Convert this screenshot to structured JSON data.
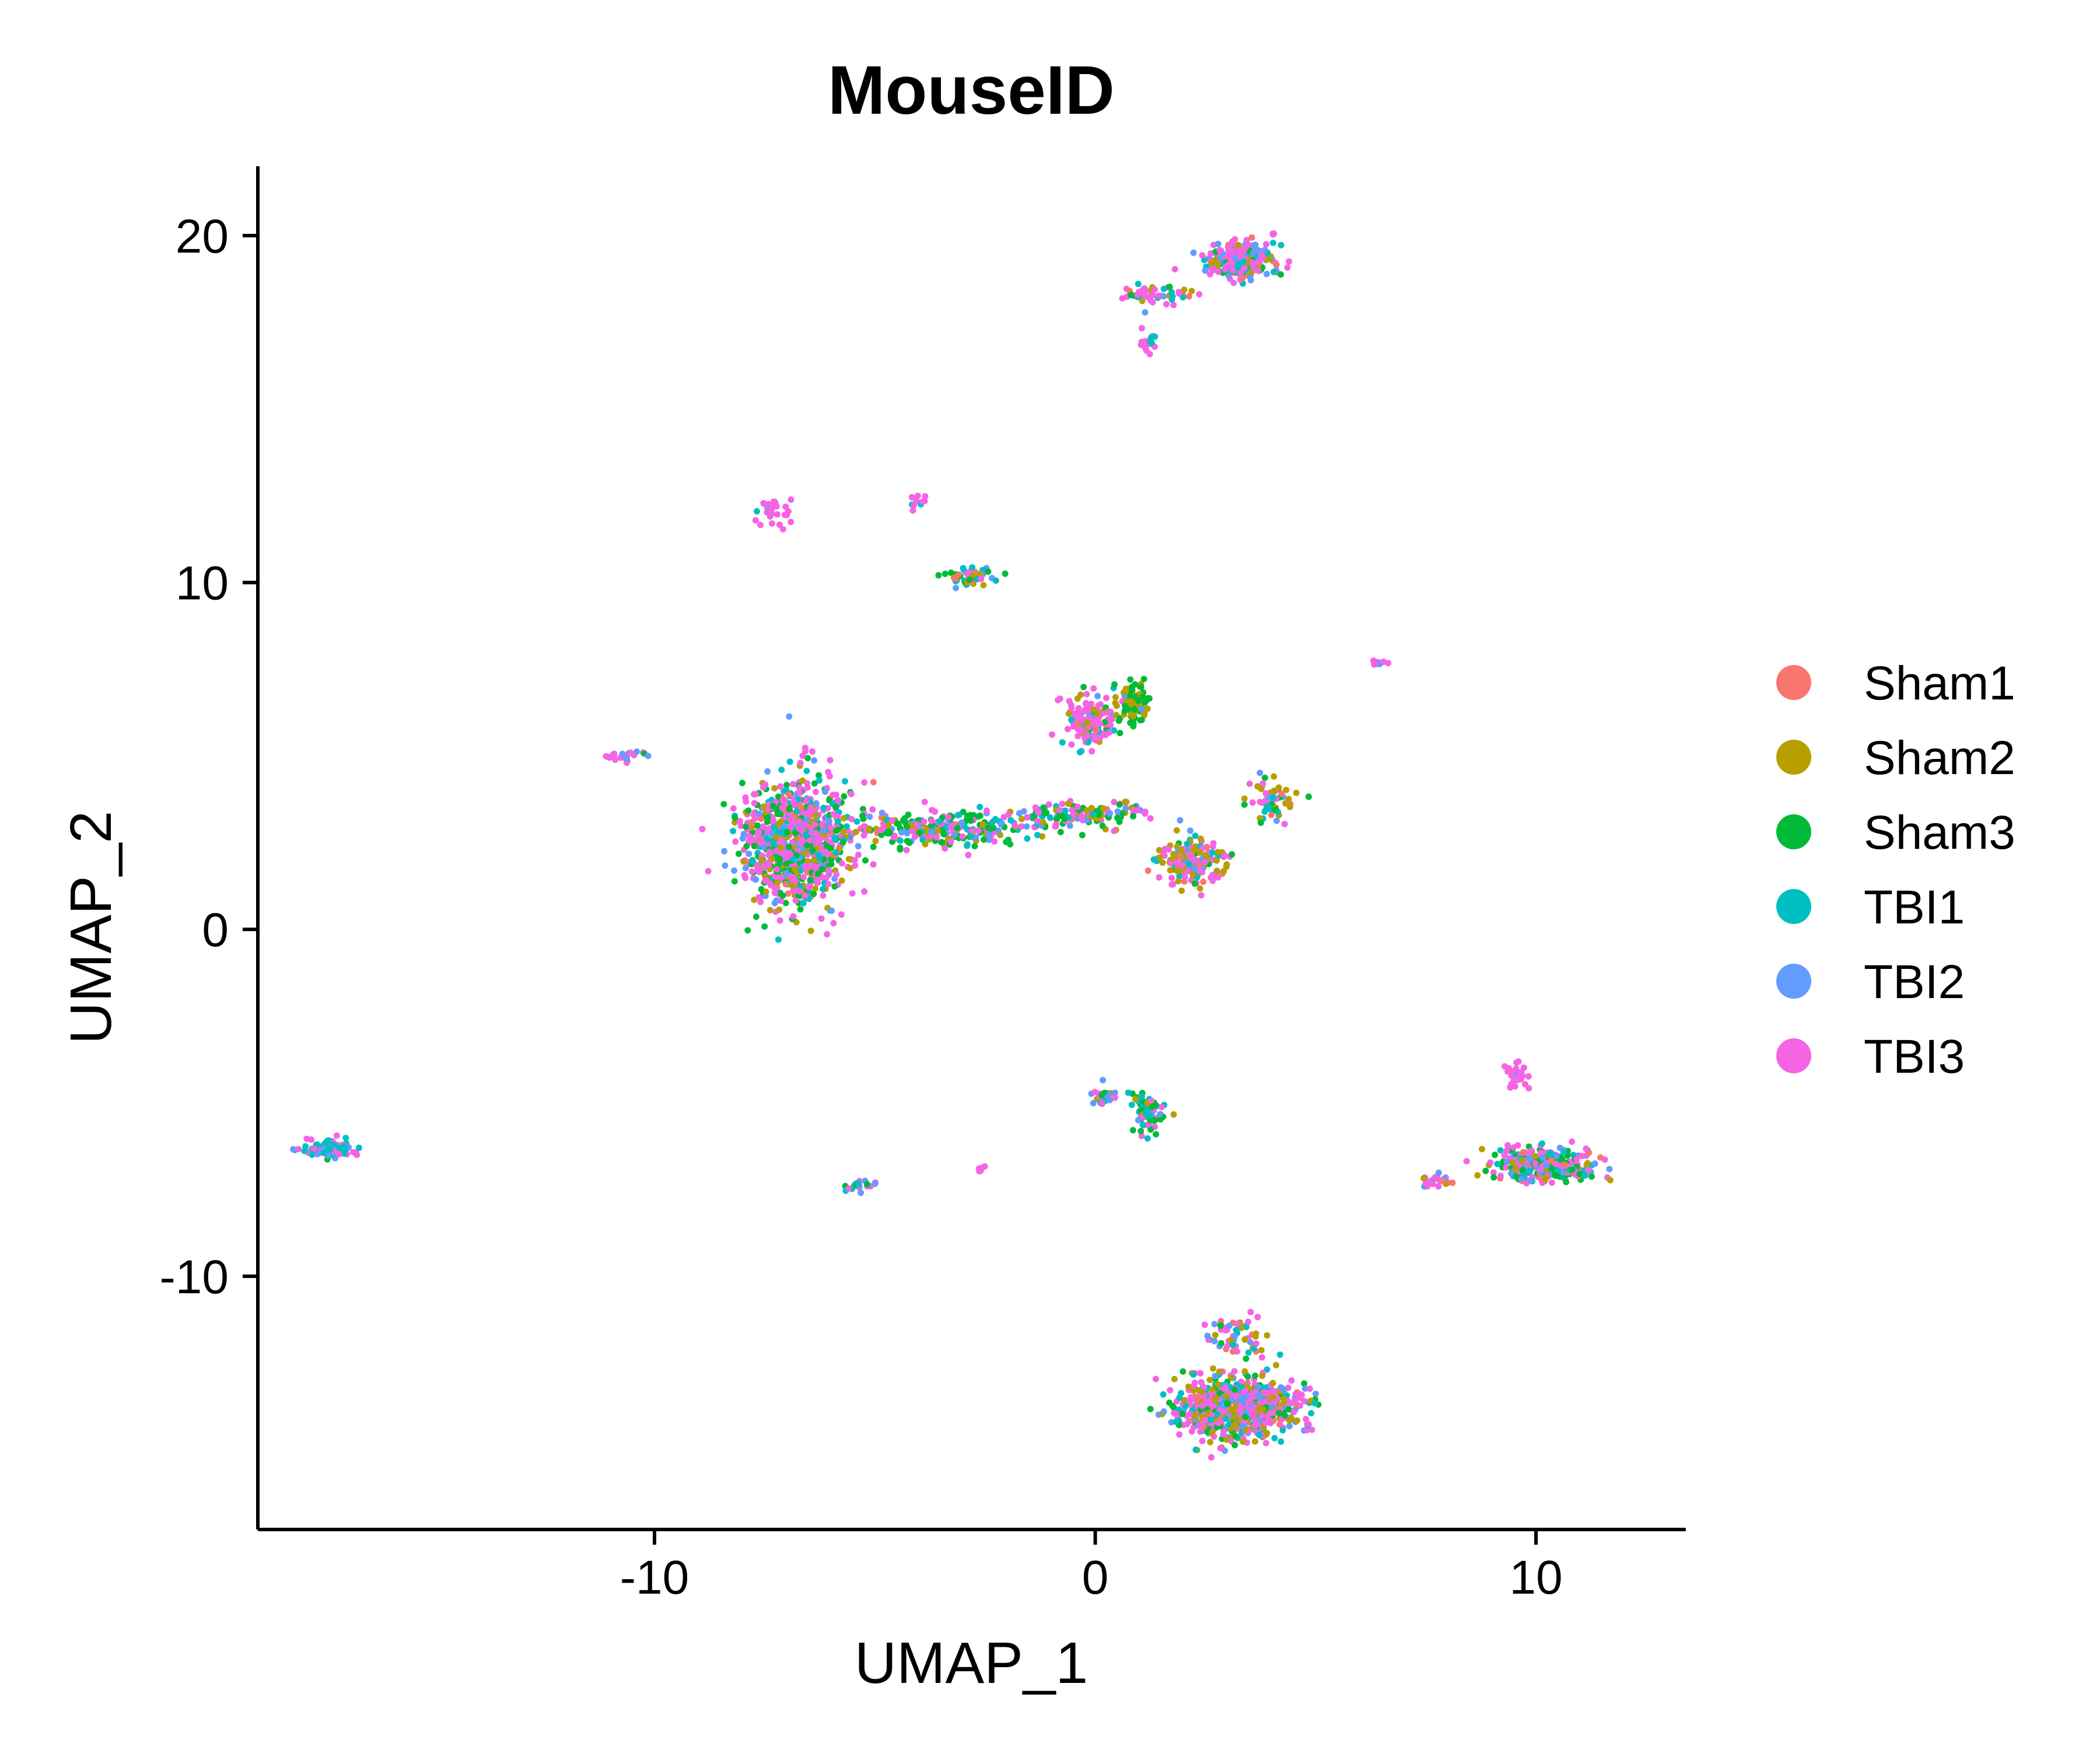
{
  "chart_data": {
    "type": "scatter",
    "title": "MouseID",
    "xlabel": "UMAP_1",
    "ylabel": "UMAP_2",
    "xlim": [
      -19,
      13.4
    ],
    "ylim": [
      -17.3,
      22
    ],
    "xticks": [
      -10,
      0,
      10
    ],
    "yticks": [
      -10,
      0,
      10,
      20
    ],
    "grid": false,
    "legend_position": "right",
    "series": [
      {
        "name": "Sham1",
        "color": "#F8766D"
      },
      {
        "name": "Sham2",
        "color": "#B79F00"
      },
      {
        "name": "Sham3",
        "color": "#00BA38"
      },
      {
        "name": "TBI1",
        "color": "#00BFC4"
      },
      {
        "name": "TBI2",
        "color": "#619CFF"
      },
      {
        "name": "TBI3",
        "color": "#F564E3"
      }
    ],
    "clusters": [
      {
        "center": [
          -6.8,
          2.5
        ],
        "spread": [
          1.1,
          1.7
        ],
        "points": 900,
        "mix": [
          0.04,
          0.12,
          0.2,
          0.1,
          0.12,
          0.42
        ]
      },
      {
        "center": [
          -3.5,
          2.9
        ],
        "spread": [
          2.0,
          0.45
        ],
        "points": 260,
        "mix": [
          0.03,
          0.12,
          0.4,
          0.1,
          0.15,
          0.2
        ]
      },
      {
        "center": [
          -0.3,
          3.3
        ],
        "spread": [
          1.5,
          0.35
        ],
        "points": 140,
        "mix": [
          0.05,
          0.1,
          0.3,
          0.1,
          0.15,
          0.3
        ]
      },
      {
        "center": [
          -10.6,
          5.0
        ],
        "spread": [
          0.5,
          0.15
        ],
        "points": 25,
        "mix": [
          0.0,
          0.0,
          0.1,
          0.1,
          0.1,
          0.7
        ]
      },
      {
        "center": [
          -0.1,
          6.0
        ],
        "spread": [
          0.5,
          0.7
        ],
        "points": 160,
        "mix": [
          0.04,
          0.1,
          0.1,
          0.1,
          0.1,
          0.56
        ]
      },
      {
        "center": [
          0.9,
          6.5
        ],
        "spread": [
          0.35,
          0.5
        ],
        "points": 90,
        "mix": [
          0.0,
          0.45,
          0.45,
          0.05,
          0.05,
          0.0
        ]
      },
      {
        "center": [
          2.2,
          2.0
        ],
        "spread": [
          0.6,
          0.55
        ],
        "points": 200,
        "mix": [
          0.05,
          0.3,
          0.1,
          0.1,
          0.1,
          0.35
        ]
      },
      {
        "center": [
          4.0,
          3.8
        ],
        "spread": [
          0.5,
          0.6
        ],
        "points": 60,
        "mix": [
          0.05,
          0.3,
          0.2,
          0.15,
          0.1,
          0.2
        ]
      },
      {
        "center": [
          3.3,
          19.3
        ],
        "spread": [
          0.7,
          0.5
        ],
        "points": 260,
        "mix": [
          0.05,
          0.1,
          0.1,
          0.15,
          0.15,
          0.45
        ]
      },
      {
        "center": [
          1.3,
          18.3
        ],
        "spread": [
          0.9,
          0.3
        ],
        "points": 50,
        "mix": [
          0.05,
          0.1,
          0.1,
          0.15,
          0.15,
          0.45
        ]
      },
      {
        "center": [
          1.2,
          16.9
        ],
        "spread": [
          0.15,
          0.3
        ],
        "points": 18,
        "mix": [
          0.0,
          0.0,
          0.0,
          0.1,
          0.1,
          0.8
        ]
      },
      {
        "center": [
          -7.3,
          12.0
        ],
        "spread": [
          0.4,
          0.4
        ],
        "points": 30,
        "mix": [
          0.0,
          0.0,
          0.0,
          0.1,
          0.1,
          0.8
        ]
      },
      {
        "center": [
          -4.0,
          12.4
        ],
        "spread": [
          0.15,
          0.2
        ],
        "points": 10,
        "mix": [
          0.0,
          0.0,
          0.0,
          0.1,
          0.2,
          0.7
        ]
      },
      {
        "center": [
          -2.8,
          10.2
        ],
        "spread": [
          0.5,
          0.3
        ],
        "points": 45,
        "mix": [
          0.05,
          0.15,
          0.35,
          0.2,
          0.1,
          0.15
        ]
      },
      {
        "center": [
          6.4,
          7.7
        ],
        "spread": [
          0.2,
          0.1
        ],
        "points": 8,
        "mix": [
          0.0,
          0.0,
          0.0,
          0.0,
          0.3,
          0.7
        ]
      },
      {
        "center": [
          3.2,
          -13.8
        ],
        "spread": [
          1.3,
          0.75
        ],
        "points": 750,
        "mix": [
          0.04,
          0.18,
          0.15,
          0.13,
          0.12,
          0.38
        ]
      },
      {
        "center": [
          3.2,
          -11.7
        ],
        "spread": [
          0.6,
          0.55
        ],
        "points": 60,
        "mix": [
          0.04,
          0.2,
          0.1,
          0.15,
          0.1,
          0.41
        ]
      },
      {
        "center": [
          10.2,
          -6.8
        ],
        "spread": [
          1.0,
          0.45
        ],
        "points": 320,
        "mix": [
          0.04,
          0.12,
          0.2,
          0.1,
          0.14,
          0.4
        ]
      },
      {
        "center": [
          7.8,
          -7.3
        ],
        "spread": [
          0.5,
          0.2
        ],
        "points": 20,
        "mix": [
          0.05,
          0.15,
          0.1,
          0.1,
          0.1,
          0.5
        ]
      },
      {
        "center": [
          9.5,
          -4.2
        ],
        "spread": [
          0.25,
          0.35
        ],
        "points": 25,
        "mix": [
          0.0,
          0.0,
          0.0,
          0.0,
          0.1,
          0.9
        ]
      },
      {
        "center": [
          1.2,
          -5.3
        ],
        "spread": [
          0.35,
          0.5
        ],
        "points": 80,
        "mix": [
          0.05,
          0.1,
          0.3,
          0.2,
          0.1,
          0.25
        ]
      },
      {
        "center": [
          0.2,
          -4.8
        ],
        "spread": [
          0.35,
          0.25
        ],
        "points": 25,
        "mix": [
          0.0,
          0.1,
          0.1,
          0.1,
          0.3,
          0.4
        ]
      },
      {
        "center": [
          -17.4,
          -6.3
        ],
        "spread": [
          0.55,
          0.2
        ],
        "points": 90,
        "mix": [
          0.0,
          0.0,
          0.05,
          0.45,
          0.2,
          0.3
        ]
      },
      {
        "center": [
          -5.3,
          -7.4
        ],
        "spread": [
          0.35,
          0.12
        ],
        "points": 20,
        "mix": [
          0.0,
          0.0,
          0.3,
          0.2,
          0.2,
          0.3
        ]
      },
      {
        "center": [
          -2.6,
          -6.9
        ],
        "spread": [
          0.1,
          0.08
        ],
        "points": 6,
        "mix": [
          0.0,
          0.0,
          0.0,
          0.0,
          0.3,
          0.7
        ]
      }
    ]
  }
}
